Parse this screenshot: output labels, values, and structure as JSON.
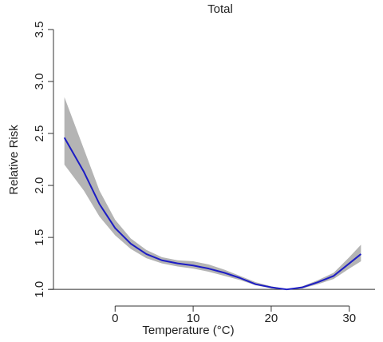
{
  "chart_data": {
    "type": "line",
    "title": "Total",
    "x_label": "Temperature (°C)",
    "y_label": "Relative Risk",
    "x": [
      -6.5,
      -4,
      -2,
      0,
      2,
      4,
      6,
      8,
      10,
      12,
      14,
      16,
      18,
      20,
      22,
      24,
      26,
      28,
      30,
      31.5
    ],
    "values": [
      2.46,
      2.13,
      1.82,
      1.59,
      1.44,
      1.34,
      1.28,
      1.25,
      1.23,
      1.2,
      1.16,
      1.11,
      1.05,
      1.02,
      1.0,
      1.02,
      1.07,
      1.13,
      1.25,
      1.34
    ],
    "lower": [
      2.2,
      1.95,
      1.7,
      1.52,
      1.39,
      1.3,
      1.25,
      1.22,
      1.2,
      1.17,
      1.13,
      1.09,
      1.04,
      1.01,
      1.0,
      1.01,
      1.05,
      1.1,
      1.2,
      1.27
    ],
    "upper": [
      2.85,
      2.35,
      1.95,
      1.67,
      1.49,
      1.38,
      1.31,
      1.28,
      1.27,
      1.24,
      1.19,
      1.13,
      1.07,
      1.03,
      1.0,
      1.03,
      1.09,
      1.16,
      1.31,
      1.43
    ],
    "color": "#1c1cc4",
    "band_color": "#b4b4b4",
    "reference_line": 1,
    "xlim": [
      -7.9,
      33.3
    ],
    "ylim": [
      0.84,
      3.63
    ],
    "xticks": [
      0,
      10,
      20,
      30
    ],
    "yticks": [
      {
        "value": 1,
        "label": "1.0"
      },
      {
        "value": 1.5,
        "label": "1.5"
      },
      {
        "value": 2,
        "label": "2.0"
      },
      {
        "value": 2.5,
        "label": "2.5"
      },
      {
        "value": 3,
        "label": "3.0"
      },
      {
        "value": 3.5,
        "label": "3.5"
      }
    ]
  }
}
